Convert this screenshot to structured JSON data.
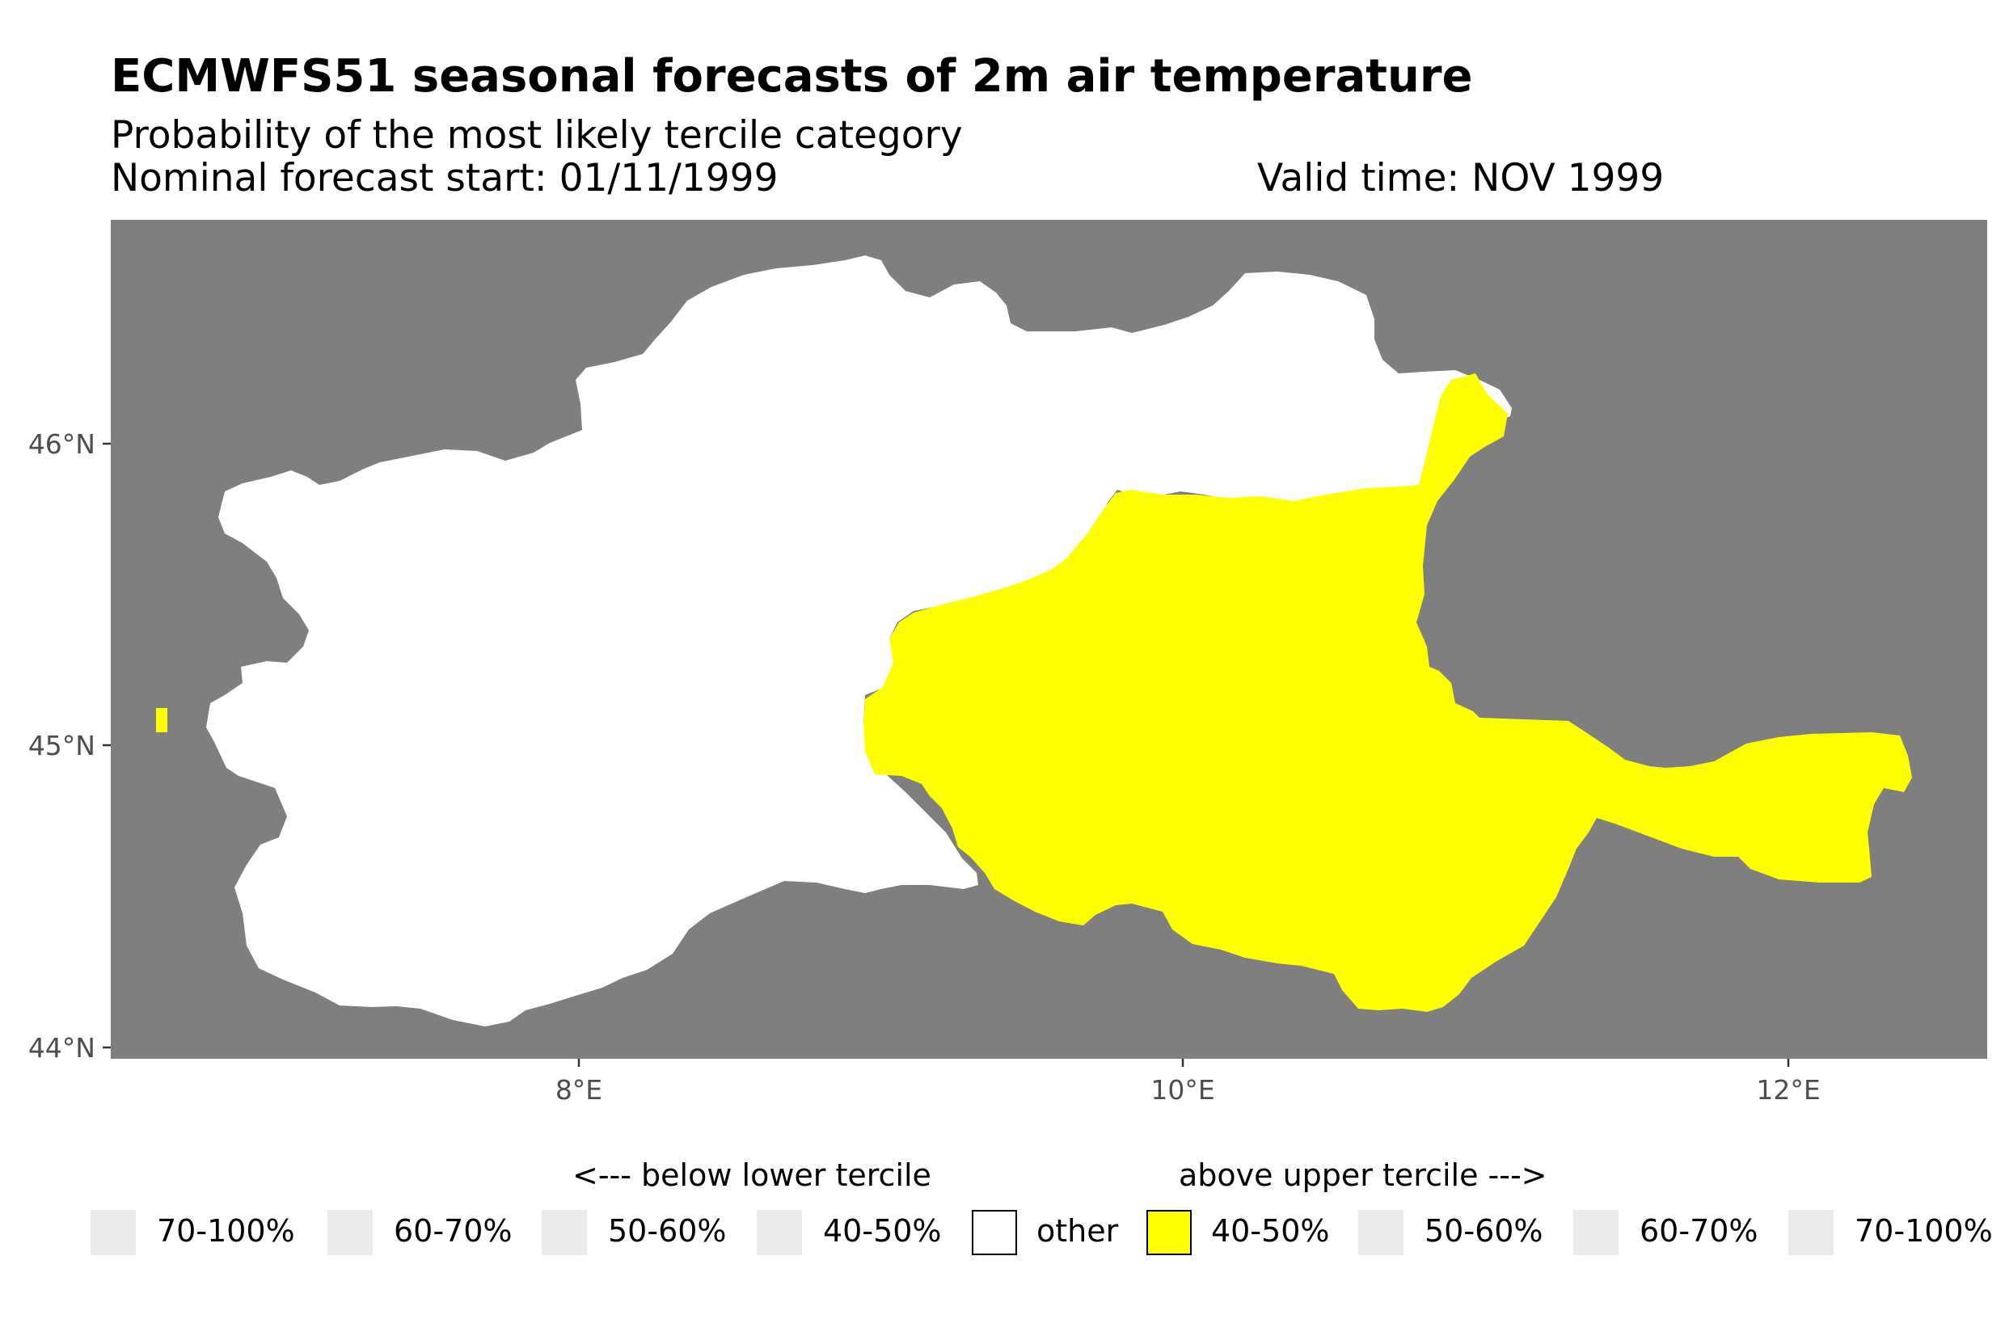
{
  "title": "ECMWFS51 seasonal forecasts of 2m air temperature",
  "subtitle": "Probability of the most likely tercile category",
  "forecast_start": "Nominal forecast start: 01/11/1999",
  "valid_time": "Valid time: NOV 1999",
  "axes": {
    "y_ticks": [
      "46°N",
      "45°N",
      "44°N"
    ],
    "x_ticks": [
      "8°E",
      "10°E",
      "12°E"
    ]
  },
  "colors": {
    "background": "#7f7f7f",
    "other": "#ffffff",
    "above_40_50": "#ffff00",
    "empty_key": "#ebebeb"
  },
  "legend": {
    "below_heading": "<--- below lower tercile",
    "above_heading": "above upper tercile --->",
    "items": [
      {
        "label": "70-100%",
        "color": "#ebebeb"
      },
      {
        "label": "60-70%",
        "color": "#ebebeb"
      },
      {
        "label": "50-60%",
        "color": "#ebebeb"
      },
      {
        "label": "40-50%",
        "color": "#ebebeb"
      },
      {
        "label": "other",
        "color": "#ffffff"
      },
      {
        "label": "40-50%",
        "color": "#ffff00"
      },
      {
        "label": "50-60%",
        "color": "#ebebeb"
      },
      {
        "label": "60-70%",
        "color": "#ebebeb"
      },
      {
        "label": "70-100%",
        "color": "#ebebeb"
      }
    ]
  }
}
